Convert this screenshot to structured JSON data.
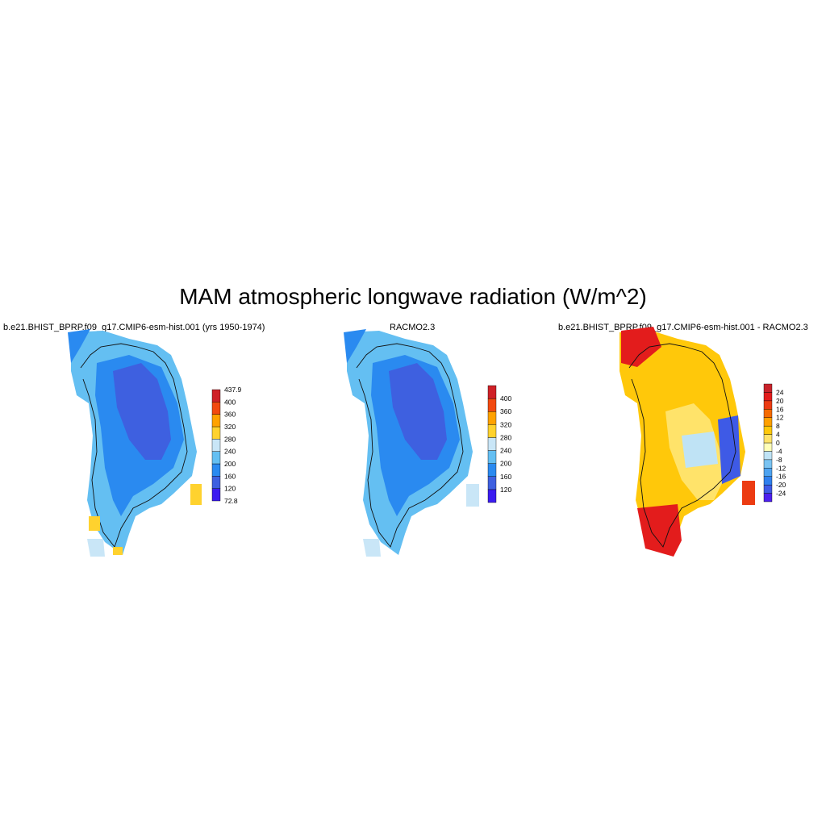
{
  "title": "MAM atmospheric longwave radiation (W/m^2)",
  "colors": {
    "bg": "#ffffff",
    "coast": "#111111",
    "seq_scale": [
      "#3b1cf0",
      "#3e60e0",
      "#2a8af0",
      "#64bff2",
      "#c9e6f7",
      "#ffd22e",
      "#ffa200",
      "#f24a10",
      "#e8181e",
      "#cf2127"
    ],
    "div_scale": [
      "#4d20ee",
      "#3e5ae6",
      "#2f80ee",
      "#4da3f0",
      "#79c3f2",
      "#bfe3f5",
      "#ffffb8",
      "#ffe36a",
      "#ffc80a",
      "#ffa000",
      "#f56a00",
      "#ec3b12",
      "#e31c1c",
      "#c8232a"
    ]
  },
  "panels": [
    {
      "title": "b.e21.BHIST_BPRP.f09_g17.CMIP6-esm-hist.001 (yrs 1950-1974)",
      "colorbar": {
        "colors": [
          "#3b1cf0",
          "#3e60e0",
          "#2a8af0",
          "#64bff2",
          "#c9e6f7",
          "#ffd22e",
          "#ffa200",
          "#f24a10",
          "#cf2127"
        ],
        "labels": [
          "72.8",
          "120",
          "160",
          "200",
          "240",
          "280",
          "320",
          "360",
          "400",
          "437.9"
        ]
      }
    },
    {
      "title": "RACMO2.3",
      "colorbar": {
        "colors": [
          "#3b1cf0",
          "#3e60e0",
          "#2a8af0",
          "#64bff2",
          "#c9e6f7",
          "#ffd22e",
          "#ffa200",
          "#f24a10",
          "#cf2127"
        ],
        "labels": [
          "120",
          "160",
          "200",
          "240",
          "280",
          "320",
          "360",
          "400"
        ]
      }
    },
    {
      "title": "b.e21.BHIST_BPRP.f09_g17.CMIP6-esm-hist.001 - RACMO2.3",
      "colorbar": {
        "colors": [
          "#4d20ee",
          "#3e5ae6",
          "#2f80ee",
          "#4da3f0",
          "#79c3f2",
          "#bfe3f5",
          "#ffffb8",
          "#ffe36a",
          "#ffc80a",
          "#ffa000",
          "#f56a00",
          "#ec3b12",
          "#e31c1c",
          "#c8232a"
        ],
        "labels": [
          "-24",
          "-20",
          "-16",
          "-12",
          "-8",
          "-4",
          "0",
          "4",
          "8",
          "12",
          "16",
          "20",
          "24"
        ]
      }
    }
  ]
}
